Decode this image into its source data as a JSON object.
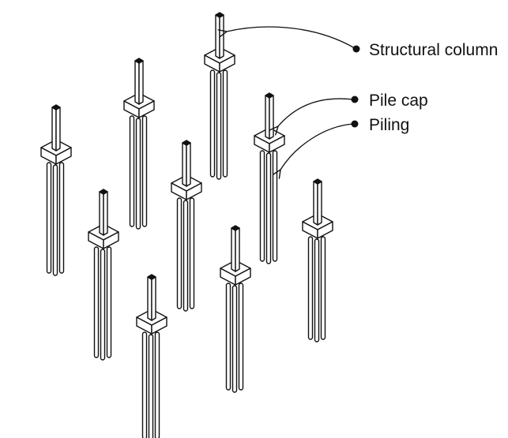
{
  "diagram": {
    "labels": {
      "structural_column": "Structural column",
      "pile_cap": "Pile cap",
      "piling": "Piling"
    },
    "colors": {
      "stroke": "#111111",
      "fill": "#ffffff",
      "column_top": "#111111"
    },
    "counts": {
      "pile_groups": 9,
      "piles_per_cap": 3
    }
  }
}
